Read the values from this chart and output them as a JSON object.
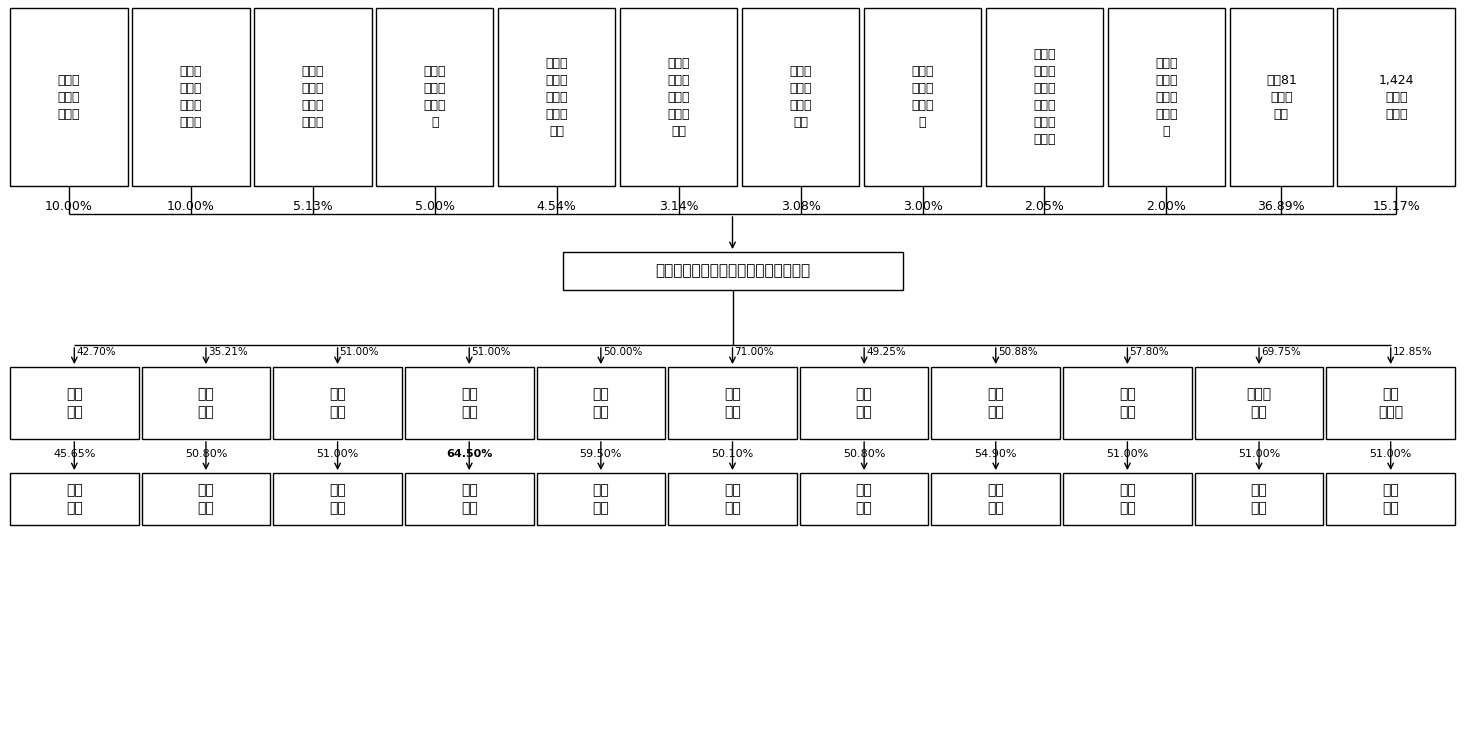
{
  "bg_color": "#ffffff",
  "line_color": "#000000",
  "text_color": "#000000",
  "top_shareholders": [
    {
      "name": "盛世达\n投资有\n限公司",
      "pct": "10.00%"
    },
    {
      "name": "江东控\n股集团\n有限责\n任公司",
      "pct": "10.00%"
    },
    {
      "name": "安徽安\n联高速\n公路有\n限公司",
      "pct": "5.13%"
    },
    {
      "name": "安徽国\n控资本\n有限公\n司",
      "pct": "5.00%"
    },
    {
      "name": "北京华\n安东方\n投资发\n展有限\n公司",
      "pct": "4.54%"
    },
    {
      "name": "马鞍山\n市兴马\n项目咨\n询有限\n公司",
      "pct": "3.14%"
    },
    {
      "name": "安徽省\n皖能股\n份有限\n公司",
      "pct": "3.08%"
    },
    {
      "name": "泰尔重\n工股份\n有限公\n司",
      "pct": "3.00%"
    },
    {
      "name": "马鞍山\n经济技\n术开发\n区建设\n投资有\n限公司",
      "pct": "2.05%"
    },
    {
      "name": "北京辰\n博仓物\n业管理\n有限公\n司",
      "pct": "2.00%"
    },
    {
      "name": "其他81\n名法人\n股东",
      "pct": "36.89%"
    },
    {
      "name": "1,424\n名自然\n人股东",
      "pct": "15.17%"
    }
  ],
  "center_company": "安徽马鞍山农村商业银行股份有限公司",
  "subsidiaries": [
    {
      "name": "当涂\n新华",
      "pct": "42.70%",
      "child_name": "阜兰\n新华",
      "child_pct": "45.65%",
      "child_bold": false
    },
    {
      "name": "番禺\n新华",
      "pct": "35.21%",
      "child_name": "盐山\n新华",
      "child_pct": "50.80%",
      "child_bold": false
    },
    {
      "name": "郎溪\n新华",
      "pct": "51.00%",
      "child_name": "海兴\n新华",
      "child_pct": "51.00%",
      "child_bold": false
    },
    {
      "name": "和县\n新华",
      "pct": "51.00%",
      "child_name": "新会\n新华",
      "child_pct": "64.50%",
      "child_bold": true
    },
    {
      "name": "兴国\n新华",
      "pct": "50.00%",
      "child_name": "南海\n新华",
      "child_pct": "59.50%",
      "child_bold": false
    },
    {
      "name": "望江\n新华",
      "pct": "71.00%",
      "child_name": "常平\n新华",
      "child_pct": "50.10%",
      "child_bold": false
    },
    {
      "name": "静海\n新华",
      "pct": "49.25%",
      "child_name": "大厂\n新华",
      "child_pct": "50.80%",
      "child_bold": false
    },
    {
      "name": "博兴\n新华",
      "pct": "50.88%",
      "child_name": "平谷\n新华",
      "child_pct": "54.90%",
      "child_bold": false
    },
    {
      "name": "永登\n新华",
      "pct": "57.80%",
      "child_name": "长安\n新华",
      "child_pct": "51.00%",
      "child_bold": false
    },
    {
      "name": "七里河\n新华",
      "pct": "69.75%",
      "child_name": "耀州\n新华",
      "child_pct": "51.00%",
      "child_bold": false
    },
    {
      "name": "祁门\n农商行",
      "pct": "12.85%",
      "child_name": "龙华\n新华",
      "child_pct": "51.00%",
      "child_bold": false
    }
  ]
}
